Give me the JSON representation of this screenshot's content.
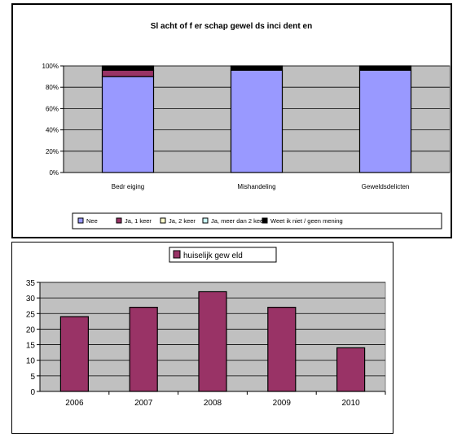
{
  "chart_data": [
    {
      "type": "bar",
      "stacked": true,
      "percent": true,
      "title": "Sl acht of f er schap gewel ds inci dent en",
      "categories": [
        "Bedr eiging",
        "Mishandeling",
        "Geweldsdelicten"
      ],
      "ylim": [
        0,
        100
      ],
      "yticks": [
        "0%",
        "20%",
        "40%",
        "60%",
        "80%",
        "100%"
      ],
      "grid": true,
      "legend_position": "bottom",
      "plot_background": "#c0c0c0",
      "series": [
        {
          "name": "Nee",
          "color": "#9999ff",
          "values": [
            90,
            96,
            96
          ]
        },
        {
          "name": "Ja, 1 keer",
          "color": "#993366",
          "values": [
            6,
            0,
            0
          ]
        },
        {
          "name": "Ja, 2 keer",
          "color": "#ffffcc",
          "values": [
            0,
            0,
            0
          ]
        },
        {
          "name": "Ja, meer dan 2 keer",
          "color": "#ccffff",
          "values": [
            0,
            0,
            0
          ]
        },
        {
          "name": "Weet ik niet / geen mening",
          "color": "#000000",
          "values": [
            4,
            4,
            4
          ]
        }
      ]
    },
    {
      "type": "bar",
      "title": "",
      "categories": [
        "2006",
        "2007",
        "2008",
        "2009",
        "2010"
      ],
      "ylim": [
        0,
        35
      ],
      "yticks": [
        "0",
        "5",
        "10",
        "15",
        "20",
        "25",
        "30",
        "35"
      ],
      "grid": true,
      "legend_position": "top",
      "plot_background": "#c0c0c0",
      "series": [
        {
          "name": "huiselijk gew eld",
          "color": "#993366",
          "values": [
            24,
            27,
            32,
            27,
            14
          ]
        }
      ]
    }
  ]
}
